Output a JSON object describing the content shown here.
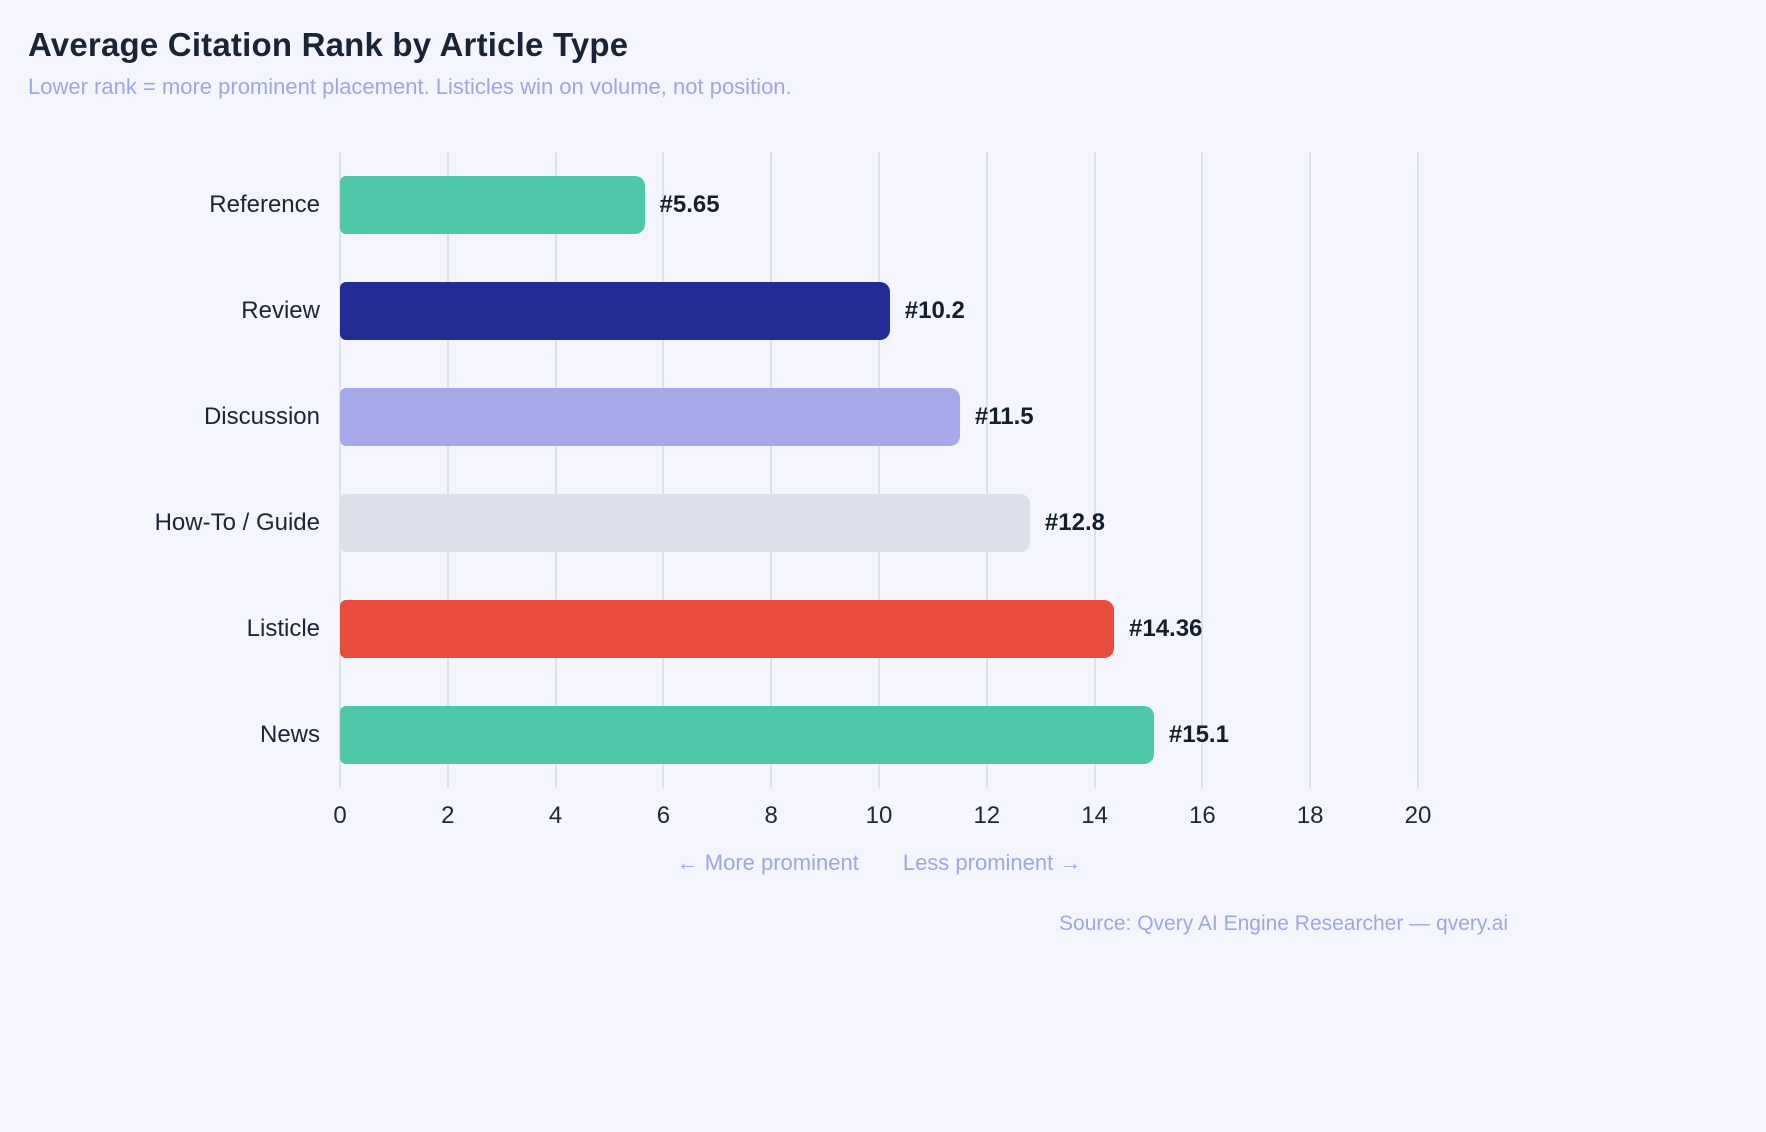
{
  "chart": {
    "title": "Average Citation Rank by Article Type",
    "subtitle": "Lower rank = more prominent placement. Listicles win on volume, not position.",
    "annotation_left": "← More prominent",
    "annotation_right": "Less prominent →",
    "source": "Source: Qvery AI Engine Researcher — qvery.ai"
  },
  "chart_data": {
    "type": "bar",
    "orientation": "horizontal",
    "title": "Average Citation Rank by Article Type",
    "subtitle": "Lower rank = more prominent placement. Listicles win on volume, not position.",
    "categories": [
      "Reference",
      "Review",
      "Discussion",
      "How-To / Guide",
      "Listicle",
      "News"
    ],
    "values": [
      5.65,
      10.2,
      11.5,
      12.8,
      14.36,
      15.1
    ],
    "value_labels": [
      "#5.65",
      "#10.2",
      "#11.5",
      "#12.8",
      "#14.36",
      "#15.1"
    ],
    "bar_colors": [
      "#4fc7ab",
      "#232b94",
      "#a7a8e9",
      "#dde0ea",
      "#e94b3d",
      "#4fc7ab"
    ],
    "xlabel": "",
    "ylabel": "",
    "xlim": [
      0,
      20
    ],
    "xticks": [
      0,
      2,
      4,
      6,
      8,
      10,
      12,
      14,
      16,
      18,
      20
    ],
    "grid": true,
    "legend": false
  },
  "colors": {
    "background": "#f5f5fd",
    "title_text": "#1b2437",
    "muted_text": "#9fa6e5",
    "gridline": "#dee0ec",
    "value_text": "#141f2e"
  }
}
